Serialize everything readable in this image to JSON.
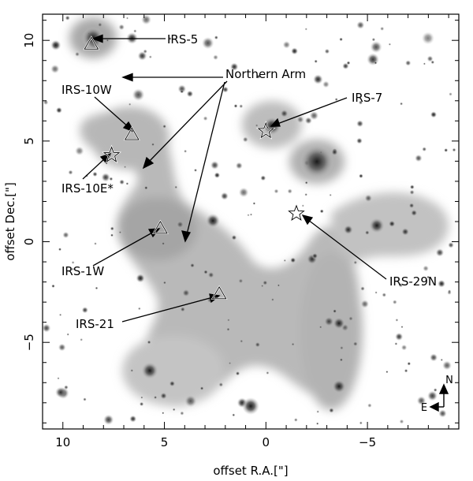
{
  "axes": {
    "xlabel": "offset R.A.[\"]",
    "ylabel": "offset Dec.[\"]",
    "xlim": [
      11,
      -9.5
    ],
    "ylim": [
      -9.3,
      11.3
    ],
    "x_ticks": [
      10,
      5,
      0,
      -5
    ],
    "x_tick_labels": [
      "10",
      "5",
      "0",
      "−5"
    ],
    "y_ticks": [
      10,
      5,
      0,
      -5
    ],
    "y_tick_labels": [
      "10",
      "5",
      "0",
      "−5"
    ]
  },
  "sources": [
    {
      "name": "IRS-5",
      "marker": "triangle",
      "x": 8.6,
      "y": 9.8
    },
    {
      "name": "IRS-10W",
      "marker": "triangle",
      "x": 6.6,
      "y": 5.3
    },
    {
      "name": "IRS-10E*",
      "marker": "star",
      "x": 7.6,
      "y": 4.3
    },
    {
      "name": "IRS-7",
      "marker": "star",
      "x": 0.0,
      "y": 5.5
    },
    {
      "name": "IRS-1W",
      "marker": "triangle",
      "x": 5.2,
      "y": 0.65
    },
    {
      "name": "IRS-21",
      "marker": "triangle",
      "x": 2.3,
      "y": -2.6
    },
    {
      "name": "IRS-29N",
      "marker": "star",
      "x": -1.5,
      "y": 1.4
    }
  ],
  "annotations": [
    {
      "text": "IRS-5",
      "target": "IRS-5"
    },
    {
      "text": "IRS-10W",
      "target": "IRS-10W"
    },
    {
      "text": "IRS-10E*",
      "target": "IRS-10E*"
    },
    {
      "text": "IRS-7",
      "target": "IRS-7"
    },
    {
      "text": "IRS-1W",
      "target": "IRS-1W"
    },
    {
      "text": "IRS-21",
      "target": "IRS-21"
    },
    {
      "text": "IRS-29N",
      "target": "IRS-29N"
    },
    {
      "text": "Northern Arm",
      "targets": [
        [
          7.2,
          8.0
        ],
        [
          6.1,
          3.6
        ],
        [
          4.0,
          0.0
        ]
      ]
    }
  ],
  "compass": {
    "north": "N",
    "east": "E"
  },
  "colors": {
    "background_gas": "#a8a8a8",
    "frame": "#000000",
    "marker_fill": "#ffffff"
  }
}
